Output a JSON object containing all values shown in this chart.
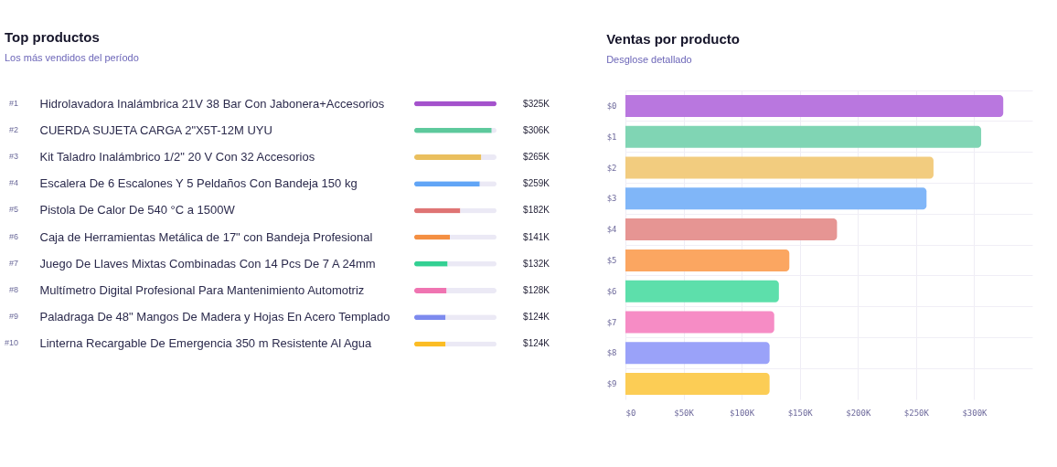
{
  "chart_data": [
    {
      "type": "bar",
      "title": "Top productos",
      "subtitle": "Los más vendidos del período",
      "orientation": "horizontal",
      "stacked": true,
      "categories": [
        "Hidrolavadora Inalámbrica 21V 38 Bar Con Jabonera+Accesorios",
        "CUERDA SUJETA CARGA 2\"X5T-12M UYU",
        "Kit Taladro Inalámbrico 1/2\" 20 V Con 32 Accesorios",
        "Escalera De 6 Escalones Y 5 Peldaños Con Bandeja 150 kg",
        "Pistola De Calor De 540 °C a 1500W",
        "Caja de Herramientas Metálica de 17\" con Bandeja Profesional",
        "Juego De Llaves Mixtas Combinadas Con 14 Pcs De 7 A 24mm",
        "Multímetro Digital Profesional Para Mantenimiento Automotriz",
        "Paladraga De 48\" Mangos De Madera y Hojas En Acero Templado",
        "Linterna Recargable De Emergencia 350 m Resistente Al Agua"
      ],
      "series": [
        {
          "values": [
            325,
            306,
            265,
            259,
            182,
            141,
            132,
            128,
            124,
            124
          ],
          "value_labels": [
            "$325K",
            "$306K",
            "$265K",
            "$259K",
            "$182K",
            "$141K",
            "$132K",
            "$128K",
            "$124K",
            "$124K"
          ],
          "colors": [
            "#a452cc",
            "#5dc99c",
            "#eabf5e",
            "#61a5f6",
            "#df7474",
            "#f48f42",
            "#33d093",
            "#ef74b1",
            "#7d8aee",
            "#fbbc24"
          ]
        },
        {
          "color": "#ebe9f5",
          "values": [
            0,
            19,
            60,
            66,
            143,
            184,
            193,
            197,
            201,
            201
          ]
        }
      ],
      "xlim": [
        0,
        325
      ],
      "tick_labels": "y",
      "annotations": [
        "#1",
        "#2",
        "#3",
        "#4",
        "#5",
        "#6",
        "#7",
        "#8",
        "#9",
        "#10"
      ]
    },
    {
      "type": "bar",
      "title": "Ventas por producto",
      "subtitle": "Desglose detallado",
      "orientation": "horizontal",
      "categories": [
        "$0",
        "$1",
        "$2",
        "$3",
        "$4",
        "$5",
        "$6",
        "$7",
        "$8",
        "$9"
      ],
      "values": [
        325,
        306,
        265,
        259,
        182,
        141,
        132,
        128,
        124,
        124
      ],
      "colors": [
        "#b977df",
        "#80d5b4",
        "#f2cc7f",
        "#80b6f8",
        "#e69593",
        "#fba661",
        "#5ddfab",
        "#f68cc5",
        "#9aa2f9",
        "#fccd55"
      ],
      "xlim": [
        0,
        350
      ],
      "xticks": [
        {
          "value": 0,
          "label": "$0"
        },
        {
          "value": 50,
          "label": "$50K"
        },
        {
          "value": 100,
          "label": "$100K"
        },
        {
          "value": 150,
          "label": "$150K"
        },
        {
          "value": 200,
          "label": "$200K"
        },
        {
          "value": 250,
          "label": "$250K"
        },
        {
          "value": 300,
          "label": "$300K"
        }
      ],
      "grid": true
    }
  ]
}
